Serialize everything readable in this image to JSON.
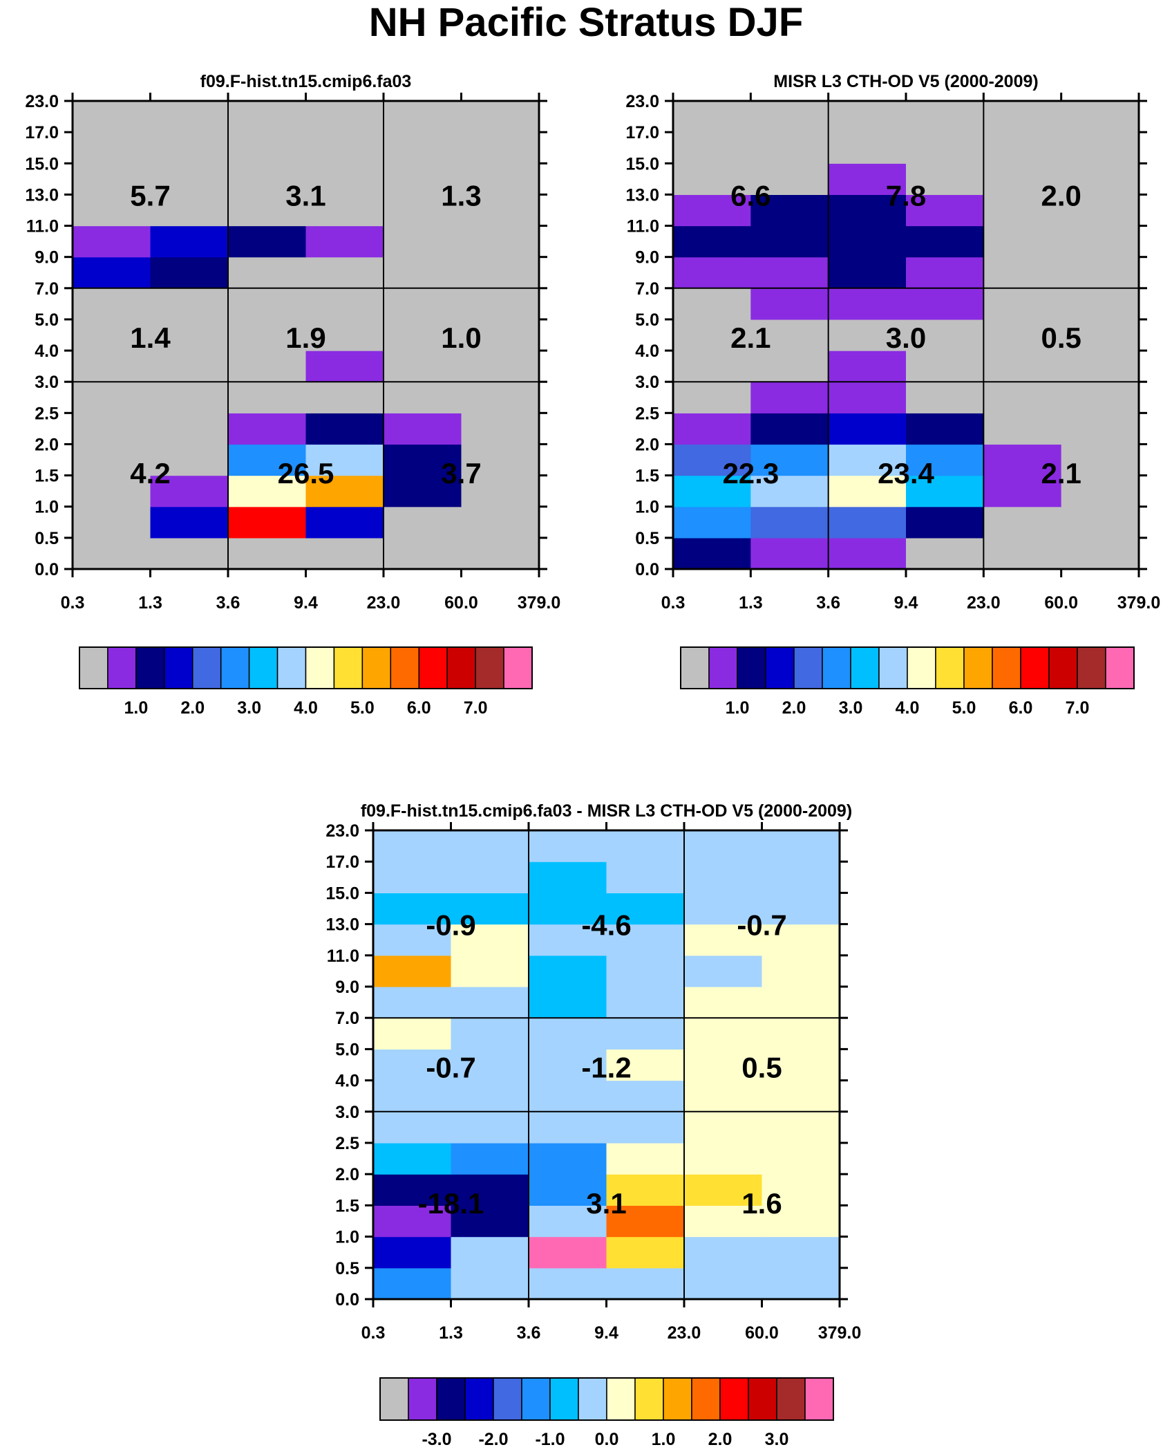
{
  "title": "NH Pacific Stratus DJF",
  "x_tick_labels": [
    "0.3",
    "1.3",
    "3.6",
    "9.4",
    "23.0",
    "60.0",
    "379.0"
  ],
  "y_tick_labels": [
    "0.0",
    "0.5",
    "1.0",
    "1.5",
    "2.0",
    "2.5",
    "3.0",
    "4.0",
    "5.0",
    "7.0",
    "9.0",
    "11.0",
    "13.0",
    "15.0",
    "17.0",
    "23.0"
  ],
  "colors": {
    "missing": "#c0c0c0",
    "palette": [
      "#c0c0c0",
      "#8a2be2",
      "#000080",
      "#0000cd",
      "#4169e1",
      "#1e90ff",
      "#00bfff",
      "#a4d3ff",
      "#ffffcc",
      "#ffe033",
      "#ffa500",
      "#ff6a00",
      "#ff0000",
      "#cd0000",
      "#a52a2a",
      "#ff69b4"
    ]
  },
  "chart_data": [
    {
      "id": "model",
      "type": "heatmap",
      "title": "f09.F-hist.tn15.cmip6.fa03",
      "x_bins": [
        "0.3",
        "1.3",
        "3.6",
        "9.4",
        "23.0",
        "60.0",
        "379.0"
      ],
      "y_bins": [
        "0.0",
        "0.5",
        "1.0",
        "1.5",
        "2.0",
        "2.5",
        "3.0",
        "4.0",
        "5.0",
        "7.0",
        "9.0",
        "11.0",
        "13.0",
        "15.0",
        "17.0",
        "23.0"
      ],
      "cells": [
        [
          0,
          0,
          0,
          0,
          0,
          0
        ],
        [
          0,
          3,
          12,
          3,
          0,
          0
        ],
        [
          0,
          1,
          8,
          10,
          2,
          0
        ],
        [
          0,
          0,
          5,
          7,
          2,
          0
        ],
        [
          0,
          0,
          1,
          2,
          1,
          0
        ],
        [
          0,
          0,
          0,
          0,
          0,
          0
        ],
        [
          0,
          0,
          0,
          1,
          0,
          0
        ],
        [
          0,
          0,
          0,
          0,
          0,
          0
        ],
        [
          0,
          0,
          0,
          0,
          0,
          0
        ],
        [
          3,
          2,
          0,
          0,
          0,
          0
        ],
        [
          1,
          3,
          2,
          1,
          0,
          0
        ],
        [
          0,
          0,
          0,
          0,
          0,
          0
        ],
        [
          0,
          0,
          0,
          0,
          0,
          0
        ],
        [
          0,
          0,
          0,
          0,
          0,
          0
        ],
        [
          0,
          0,
          0,
          0,
          0,
          0
        ]
      ],
      "group_totals": [
        [
          "4.2",
          "26.5",
          "3.7"
        ],
        [
          "1.4",
          "1.9",
          "1.0"
        ],
        [
          "5.7",
          "3.1",
          "1.3"
        ]
      ],
      "colorbar": {
        "tick_labels": [
          "1.0",
          "2.0",
          "3.0",
          "4.0",
          "5.0",
          "6.0",
          "7.0"
        ]
      }
    },
    {
      "id": "obs",
      "type": "heatmap",
      "title": "MISR L3 CTH-OD V5 (2000-2009)",
      "x_bins": [
        "0.3",
        "1.3",
        "3.6",
        "9.4",
        "23.0",
        "60.0",
        "379.0"
      ],
      "y_bins": [
        "0.0",
        "0.5",
        "1.0",
        "1.5",
        "2.0",
        "2.5",
        "3.0",
        "4.0",
        "5.0",
        "7.0",
        "9.0",
        "11.0",
        "13.0",
        "15.0",
        "17.0",
        "23.0"
      ],
      "cells": [
        [
          2,
          1,
          1,
          0,
          0,
          0
        ],
        [
          5,
          4,
          4,
          2,
          0,
          0
        ],
        [
          6,
          7,
          8,
          6,
          1,
          0
        ],
        [
          4,
          5,
          7,
          5,
          1,
          0
        ],
        [
          1,
          2,
          3,
          2,
          0,
          0
        ],
        [
          0,
          1,
          1,
          0,
          0,
          0
        ],
        [
          0,
          0,
          1,
          0,
          0,
          0
        ],
        [
          0,
          0,
          0,
          0,
          0,
          0
        ],
        [
          0,
          1,
          1,
          1,
          0,
          0
        ],
        [
          1,
          1,
          2,
          1,
          0,
          0
        ],
        [
          2,
          2,
          2,
          2,
          0,
          0
        ],
        [
          1,
          2,
          2,
          1,
          0,
          0
        ],
        [
          0,
          0,
          1,
          0,
          0,
          0
        ],
        [
          0,
          0,
          0,
          0,
          0,
          0
        ],
        [
          0,
          0,
          0,
          0,
          0,
          0
        ]
      ],
      "group_totals": [
        [
          "22.3",
          "23.4",
          "2.1"
        ],
        [
          "2.1",
          "3.0",
          "0.5"
        ],
        [
          "6.6",
          "7.8",
          "2.0"
        ]
      ],
      "colorbar": {
        "tick_labels": [
          "1.0",
          "2.0",
          "3.0",
          "4.0",
          "5.0",
          "6.0",
          "7.0"
        ]
      }
    },
    {
      "id": "diff",
      "type": "heatmap",
      "title": "f09.F-hist.tn15.cmip6.fa03 - MISR L3 CTH-OD V5 (2000-2009)",
      "x_bins": [
        "0.3",
        "1.3",
        "3.6",
        "9.4",
        "23.0",
        "60.0",
        "379.0"
      ],
      "y_bins": [
        "0.0",
        "0.5",
        "1.0",
        "1.5",
        "2.0",
        "2.5",
        "3.0",
        "4.0",
        "5.0",
        "7.0",
        "9.0",
        "11.0",
        "13.0",
        "15.0",
        "17.0",
        "23.0"
      ],
      "cells": [
        [
          5,
          7,
          7,
          7,
          7,
          7
        ],
        [
          3,
          7,
          15,
          9,
          7,
          7
        ],
        [
          1,
          2,
          7,
          11,
          8,
          8
        ],
        [
          2,
          2,
          5,
          9,
          9,
          8
        ],
        [
          6,
          5,
          5,
          8,
          8,
          8
        ],
        [
          7,
          7,
          7,
          7,
          8,
          8
        ],
        [
          7,
          7,
          7,
          7,
          8,
          8
        ],
        [
          7,
          7,
          7,
          8,
          8,
          8
        ],
        [
          8,
          7,
          7,
          7,
          8,
          8
        ],
        [
          7,
          7,
          6,
          7,
          8,
          8
        ],
        [
          10,
          8,
          6,
          7,
          7,
          8
        ],
        [
          7,
          8,
          7,
          7,
          8,
          8
        ],
        [
          6,
          6,
          6,
          6,
          7,
          7
        ],
        [
          7,
          7,
          6,
          7,
          7,
          7
        ],
        [
          7,
          7,
          7,
          7,
          7,
          7
        ]
      ],
      "group_totals": [
        [
          "-18.1",
          "3.1",
          "1.6"
        ],
        [
          "-0.7",
          "-1.2",
          "0.5"
        ],
        [
          "-0.9",
          "-4.6",
          "-0.7"
        ]
      ],
      "colorbar": {
        "tick_labels": [
          "-3.0",
          "-2.0",
          "-1.0",
          "0.0",
          "1.0",
          "2.0",
          "3.0"
        ]
      }
    }
  ]
}
